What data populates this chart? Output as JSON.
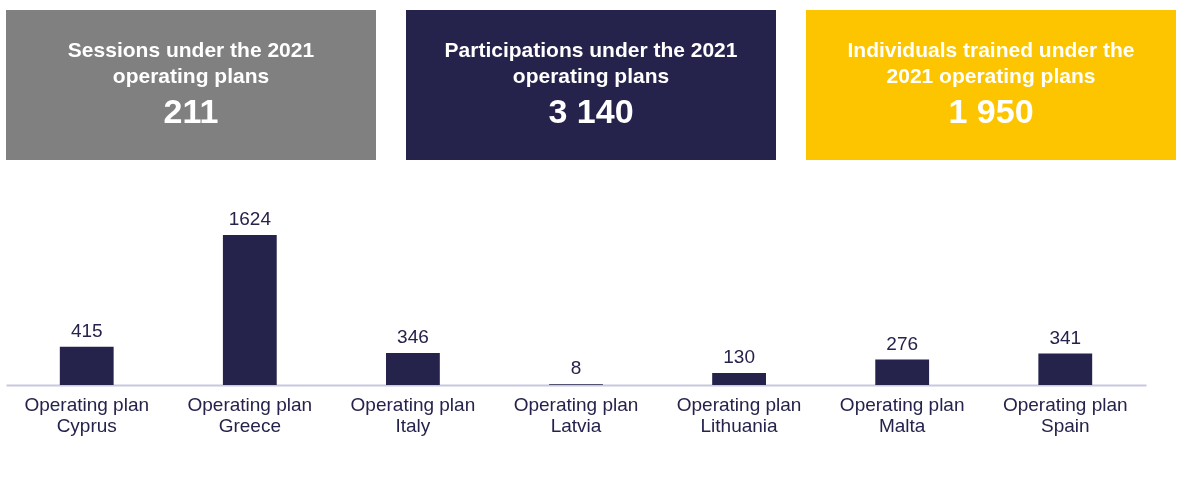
{
  "chart_data": [
    {
      "type": "other",
      "title": "Sessions under the 2021 operating plans",
      "annotations": [
        "211"
      ],
      "color": "#808080"
    },
    {
      "type": "other",
      "title": "Participations under the 2021 operating plans",
      "annotations": [
        "3 140"
      ],
      "color": "#25234b"
    },
    {
      "type": "other",
      "title": "Individuals trained under the 2021 operating plans",
      "annotations": [
        "1 950"
      ],
      "color": "#fcc500"
    },
    {
      "type": "bar",
      "categories": [
        "Operating plan\nCyprus",
        "Operating plan\nGreece",
        "Operating plan\nItaly",
        "Operating plan\nLatvia",
        "Operating plan\nLithuania",
        "Operating plan\nMalta",
        "Operating plan\nSpain"
      ],
      "values": [
        415,
        1624,
        346,
        8,
        130,
        276,
        341
      ],
      "color": "#25234b",
      "data_labels": true
    }
  ]
}
